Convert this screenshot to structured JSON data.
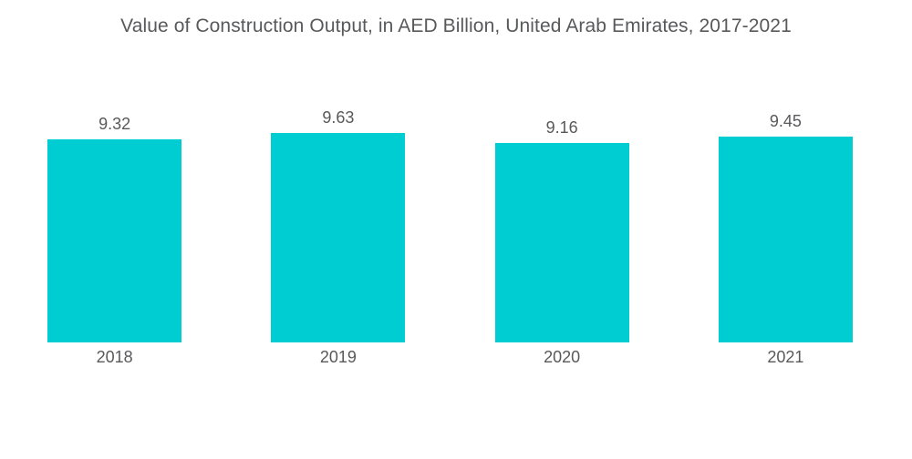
{
  "chart_data": {
    "type": "bar",
    "title": "Value of Construction Output, in AED Billion, United Arab Emirates, 2017-2021",
    "categories": [
      "2018",
      "2019",
      "2020",
      "2021"
    ],
    "values": [
      9.32,
      9.63,
      9.16,
      9.45
    ],
    "value_labels": [
      "9.32",
      "9.63",
      "9.16",
      "9.45"
    ],
    "xlabel": "",
    "ylabel": "",
    "ylim": [
      0,
      10
    ],
    "grid": false,
    "legend_position": "none",
    "bar_color": "#00CDD1",
    "text_color": "#58595B",
    "background_color": "#FFFFFF"
  }
}
